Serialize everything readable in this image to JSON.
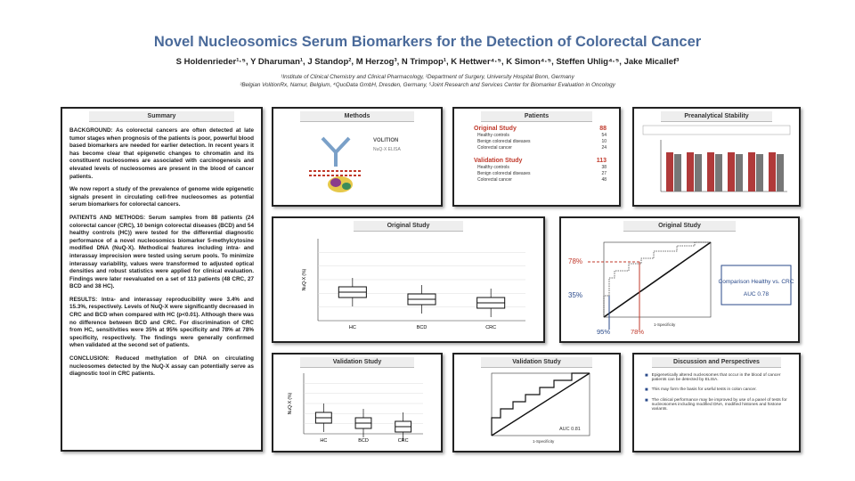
{
  "header": {
    "title": "Novel Nucleosomics Serum Biomarkers for the Detection of Colorectal Cancer",
    "authors": "S Holdenrieder¹·⁵, Y Dharuman¹, J Standop², M Herzog³, N Trimpop¹, K Hettwer⁴·⁵, K Simon⁴·⁵, Steffen Uhlig⁴·⁵, Jake Micallef³",
    "affiliations": [
      "¹Institute of Clinical Chemistry and Clinical Pharmacology, ²Department of Surgery, University Hospital Bonn, Germany",
      "³Belgian VolitionRx, Namur, Belgium, ⁴QuoData GmbH, Dresden, Germany, ⁵Joint Research and Services Center for Biomarker Evaluation in Oncology"
    ]
  },
  "summary": {
    "heading": "Summary",
    "paragraphs": [
      "BACKGROUND: As colorectal cancers are often detected at late tumor stages when prognosis of the patients is poor, powerful blood based biomarkers are needed for earlier detection. In recent years it has become clear that epigenetic changes to chromatin and its constituent nucleosomes are associated with carcinogenesis and elevated levels of nucleosomes are present in the blood of cancer patients.",
      "We now report a study of the prevalence of genome wide epigenetic signals present in circulating cell-free nucleosomes as potential serum biomarkers for colorectal cancers.",
      "PATIENTS AND METHODS: Serum samples from 88 patients (24 colorectal cancer (CRC), 10 benign colorectal diseases (BCD) and 54 healthy controls (HC)) were tested for the differential diagnostic performance of a novel nucleosomics biomarker 5-methylcytosine modified DNA (NuQ-X). Methodical features including intra- and interassay imprecision were tested using serum pools. To minimize interassay variability, values were transformed to adjusted optical densities and robust statistics were applied for clinical evaluation. Findings were later reevaluated on a set of 113 patients (48 CRC, 27 BCD and 38 HC).",
      "RESULTS: Intra- and interassay reproducibility were 3.4% and 15.3%, respectively. Levels of NuQ-X were significantly decreased in CRC and BCD when compared with HC (p<0.01). Although there was no difference between BCD and CRC. For discrimination of CRC from HC, sensitivities were 35% at 95% specificity and 78% at 78% specificity, respectively. The findings were generally confirmed when validated at the second set of patients.",
      "CONCLUSION: Reduced methylation of DNA on circulating nucleosomes detected by the NuQ-X assay can potentially serve as diagnostic tool in CRC patients."
    ]
  },
  "methods": {
    "heading": "Methods",
    "brand": "VOLITION",
    "assay": "NuQ-X ELISA"
  },
  "patients": {
    "heading": "Patients",
    "groups": [
      {
        "name": "Original Study",
        "total": "88",
        "rows": [
          [
            "Healthy controls",
            "54"
          ],
          [
            "Benign colorectal diseases",
            "10"
          ],
          [
            "Colorectal cancer",
            "24"
          ]
        ]
      },
      {
        "name": "Validation Study",
        "total": "113",
        "rows": [
          [
            "Healthy controls",
            "38"
          ],
          [
            "Benign colorectal diseases",
            "27"
          ],
          [
            "Colorectal cancer",
            "48"
          ]
        ]
      }
    ]
  },
  "stability": {
    "heading": "Preanalytical Stability"
  },
  "original_box": {
    "heading": "Original Study",
    "y_label": "NuQ-X (%)",
    "categories": [
      "HC",
      "BCD",
      "CRC"
    ]
  },
  "original_roc": {
    "heading": "Original Study",
    "sens_labels": [
      "78%",
      "35%"
    ],
    "spec_labels": [
      "95%",
      "78%"
    ],
    "x_label": "1-Specificity",
    "comparison": "Comparison Healthy vs. CRC",
    "auc": "AUC 0.78"
  },
  "validation_box": {
    "heading": "Validation Study",
    "y_label": "NuQ-X (%)",
    "categories": [
      "HC",
      "BCD",
      "CRC"
    ]
  },
  "validation_roc": {
    "heading": "Validation Study",
    "x_label": "1-Specificity",
    "auc": "AUC 0.81"
  },
  "discussion": {
    "heading": "Discussion and Perspectives",
    "bullets": [
      "Epigenetically altered nucleosomes that occur in the blood of cancer patients can be detected by ELISA.",
      "This may form the basis for useful tests in colon cancer.",
      "The clinical performance may be improved by use of a panel of tests for nucleosomes including modified DNA, modified histones and histone variants."
    ]
  }
}
